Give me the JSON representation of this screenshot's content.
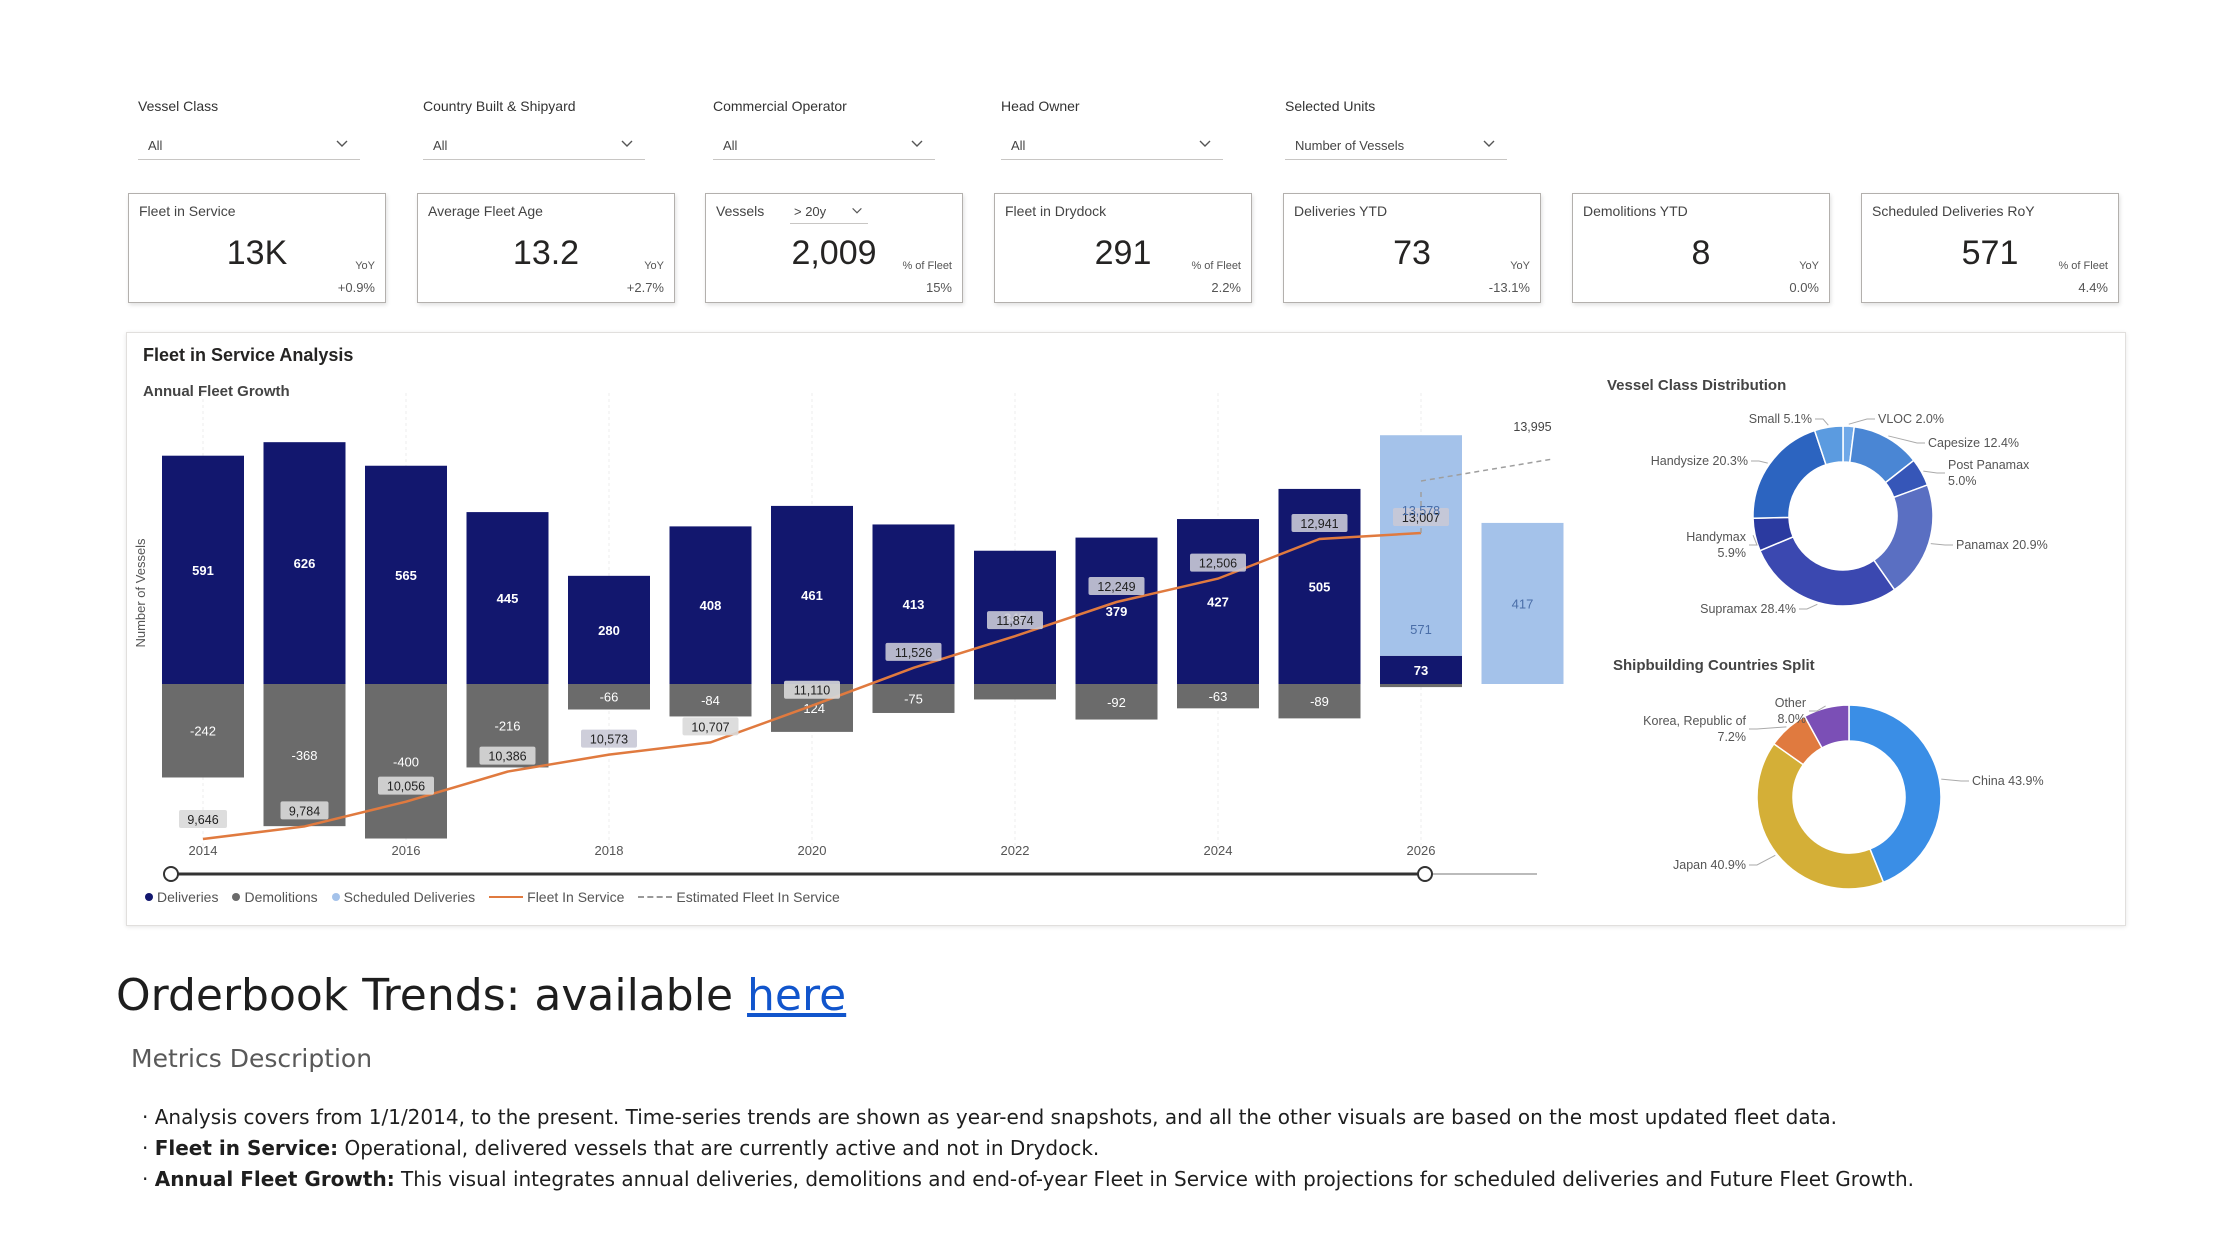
{
  "filters": [
    {
      "label": "Vessel Class",
      "value": "All"
    },
    {
      "label": "Country Built & Shipyard",
      "value": "All"
    },
    {
      "label": "Commercial Operator",
      "value": "All"
    },
    {
      "label": "Head Owner",
      "value": "All"
    },
    {
      "label": "Selected Units",
      "value": "Number of Vessels"
    }
  ],
  "kpis": [
    {
      "title": "Fleet in Service",
      "value": "13K",
      "sub_label": "YoY",
      "sub_value": "+0.9%"
    },
    {
      "title": "Average Fleet Age",
      "value": "13.2",
      "sub_label": "YoY",
      "sub_value": "+2.7%"
    },
    {
      "title": "Vessels",
      "selector": "> 20y",
      "value": "2,009",
      "sub_label": "% of Fleet",
      "sub_value": "15%"
    },
    {
      "title": "Fleet in Drydock",
      "value": "291",
      "sub_label": "% of Fleet",
      "sub_value": "2.2%"
    },
    {
      "title": "Deliveries YTD",
      "value": "73",
      "sub_label": "YoY",
      "sub_value": "-13.1%"
    },
    {
      "title": "Demolitions YTD",
      "value": "8",
      "sub_label": "YoY",
      "sub_value": "0.0%"
    },
    {
      "title": "Scheduled Deliveries RoY",
      "value": "571",
      "sub_label": "% of Fleet",
      "sub_value": "4.4%"
    }
  ],
  "panel": {
    "title": "Fleet in Service Analysis",
    "subtitle": "Annual Fleet Growth"
  },
  "colors": {
    "deliveries": "#12176e",
    "demolitions": "#6b6b6b",
    "scheduled": "#a4c2ea",
    "fleet_line": "#e07a3f",
    "estimated": "#9e9e9e"
  },
  "chart_data": [
    {
      "type": "bar",
      "title": "Annual Fleet Growth",
      "ylabel": "Number of Vessels",
      "x_tick_labels": [
        "2014",
        "2016",
        "2018",
        "2020",
        "2022",
        "2024",
        "2026"
      ],
      "x": [
        2014,
        2015,
        2016,
        2017,
        2018,
        2019,
        2020,
        2021,
        2022,
        2023,
        2024,
        2025,
        2026,
        2027
      ],
      "series": [
        {
          "name": "Deliveries",
          "values": [
            591,
            626,
            565,
            445,
            280,
            408,
            461,
            413,
            345,
            379,
            427,
            505,
            73,
            null
          ]
        },
        {
          "name": "Demolitions",
          "values": [
            -242,
            -368,
            -400,
            -216,
            -66,
            -84,
            -124,
            -75,
            -40,
            -92,
            -63,
            -89,
            -8,
            null
          ]
        },
        {
          "name": "Scheduled Deliveries",
          "values": [
            null,
            null,
            null,
            null,
            null,
            null,
            null,
            null,
            null,
            null,
            null,
            null,
            571,
            417
          ]
        },
        {
          "name": "Fleet In Service",
          "values": [
            9646,
            9784,
            10056,
            10386,
            10573,
            10707,
            11110,
            11526,
            11874,
            12249,
            12506,
            12941,
            13007,
            null
          ]
        },
        {
          "name": "Estimated Fleet In Service",
          "values": [
            null,
            null,
            null,
            null,
            null,
            null,
            null,
            null,
            null,
            null,
            null,
            null,
            13578,
            13995
          ]
        }
      ],
      "bar_labels": {
        "deliveries": [
          "591",
          "626",
          "565",
          "445",
          "280",
          "408",
          "461",
          "413",
          "345",
          "379",
          "427",
          "505",
          "73",
          ""
        ],
        "demolitions": [
          "-242",
          "-368",
          "-400",
          "-216",
          "-66",
          "-84",
          "-124",
          "-75",
          "",
          "-92",
          "-63",
          "-89",
          "",
          ""
        ],
        "scheduled": [
          "",
          "",
          "",
          "",
          "",
          "",
          "",
          "",
          "",
          "",
          "",
          "",
          "571",
          "417"
        ],
        "fleet": [
          "9,646",
          "9,784",
          "10,056",
          "10,386",
          "10,573",
          "10,707",
          "11,110",
          "11,526",
          "11,874",
          "12,249",
          "12,506",
          "12,941",
          "13,007",
          ""
        ],
        "estimated": [
          "",
          "",
          "",
          "",
          "",
          "",
          "",
          "",
          "",
          "",
          "",
          "",
          "13,578",
          "13,995"
        ]
      },
      "legend": [
        "Deliveries",
        "Demolitions",
        "Scheduled Deliveries",
        "Fleet In Service",
        "Estimated Fleet In Service"
      ],
      "legend_position": "bottom-left"
    },
    {
      "type": "pie",
      "title": "Vessel Class Distribution",
      "categories": [
        "VLOC",
        "Capesize",
        "Post Panamax",
        "Panamax",
        "Supramax",
        "Handymax",
        "Handysize",
        "Small"
      ],
      "labels": [
        "VLOC 2.0%",
        "Capesize 12.4%",
        "Post Panamax 5.0%",
        "Panamax 20.9%",
        "Supramax 28.4%",
        "Handymax 5.9%",
        "Handysize 20.3%",
        "Small 5.1%"
      ],
      "values": [
        2.0,
        12.4,
        5.0,
        20.9,
        28.4,
        5.9,
        20.3,
        5.1
      ],
      "colors": [
        "#6fa8e8",
        "#4a86d4",
        "#3656b8",
        "#5a6fc2",
        "#3b48b0",
        "#2b3aa0",
        "#2c64c0",
        "#5b9be0"
      ]
    },
    {
      "type": "pie",
      "title": "Shipbuilding Countries Split",
      "categories": [
        "China",
        "Japan",
        "Korea, Republic of",
        "Other"
      ],
      "labels": [
        "China 43.9%",
        "Japan 40.9%",
        "Korea, Republic of 7.2%",
        "Other 8.0%"
      ],
      "values": [
        43.9,
        40.9,
        7.2,
        8.0
      ],
      "colors": [
        "#3a8ee6",
        "#d4af37",
        "#e07a3f",
        "#7b4fb6"
      ]
    }
  ],
  "footer": {
    "orderbook_prefix": "Orderbook Trends: available ",
    "orderbook_link": "here",
    "metrics_title": "Metrics Description",
    "bullet1": "Analysis covers from 1/1/2014, to the present. Time-series trends are shown as year-end snapshots, and all the other visuals are based on the most updated fleet data.",
    "bullet2_bold": "Fleet in Service:",
    "bullet2_text": " Operational, delivered vessels that are currently active and not in Drydock.",
    "bullet3_bold": "Annual Fleet Growth:",
    "bullet3_text": " This visual integrates annual deliveries, demolitions and end-of-year Fleet in Service with projections for scheduled deliveries and Future Fleet Growth."
  }
}
